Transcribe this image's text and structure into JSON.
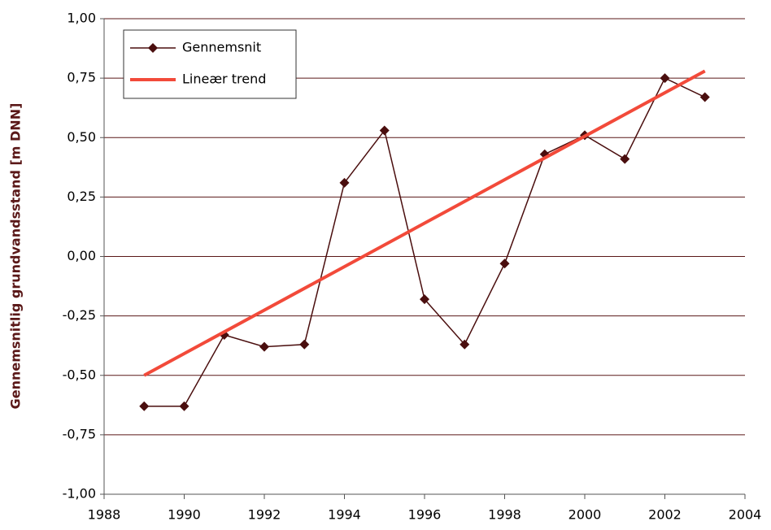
{
  "chart_data": {
    "type": "line",
    "y_label": "Gennemsnitlig grundvandsstand [m DNN]",
    "xlim": [
      1988,
      2004
    ],
    "xticks": [
      1988,
      1990,
      1992,
      1994,
      1996,
      1998,
      2000,
      2002,
      2004
    ],
    "ylim": [
      -1,
      1
    ],
    "yticks": [
      {
        "value": -1,
        "label": "-1,00"
      },
      {
        "value": -0.75,
        "label": "-0,75"
      },
      {
        "value": -0.5,
        "label": "-0,50"
      },
      {
        "value": -0.25,
        "label": "-0,25"
      },
      {
        "value": 0,
        "label": "0,00"
      },
      {
        "value": 0.25,
        "label": "0,25"
      },
      {
        "value": 0.5,
        "label": "0,50"
      },
      {
        "value": 0.75,
        "label": "0,75"
      },
      {
        "value": 1,
        "label": "1,00"
      }
    ],
    "grid": true,
    "legend": "upper left",
    "series": [
      {
        "name": "Gennemsnit",
        "color": "#4a0e0e",
        "marker": "diamond",
        "x": [
          1989,
          1990,
          1991,
          1992,
          1993,
          1994,
          1995,
          1996,
          1997,
          1998,
          1999,
          2000,
          2001,
          2002,
          2003
        ],
        "values": [
          -0.63,
          -0.63,
          -0.33,
          -0.38,
          -0.37,
          0.31,
          0.53,
          -0.18,
          -0.37,
          -0.03,
          0.43,
          0.51,
          0.41,
          0.75,
          0.67
        ]
      },
      {
        "name": "Lineær trend",
        "color": "#f24a3a",
        "x": [
          1989,
          2003
        ],
        "values": [
          -0.5,
          0.78
        ]
      }
    ]
  }
}
